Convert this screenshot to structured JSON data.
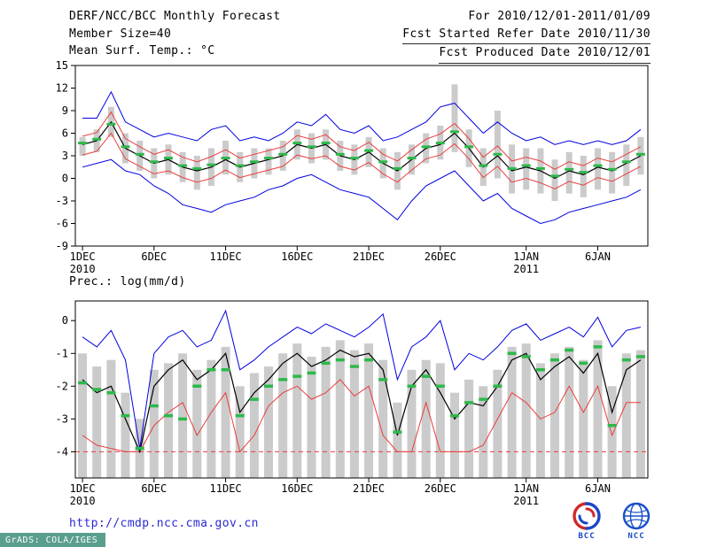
{
  "header": {
    "left": [
      "DERF/NCC/BCC Monthly Forecast",
      "Member Size=40",
      "Mean Surf. Temp.: °C"
    ],
    "right": [
      "For 2010/12/01-2011/01/09",
      "Fcst Started Refer Date 2010/11/30",
      "Fcst Produced Date 2010/12/01"
    ]
  },
  "footer": {
    "url": "http://cmdp.ncc.cma.gov.cn",
    "stamp": "GrADS: COLA/IGES",
    "logos": [
      {
        "label": "BCC"
      },
      {
        "label": "NCC"
      }
    ]
  },
  "colors": {
    "line_blue": "#0000e0",
    "line_red": "#eb3d3d",
    "line_black": "#000000",
    "dash_green": "#2db84a",
    "bar_gray": "#cbcbcb",
    "url_blue": "#2a2ad4",
    "stamp_bg": "#5a9e8e",
    "text": "#000000"
  },
  "chart_data": [
    {
      "type": "line",
      "name": "surface-temperature",
      "title": "Mean Surf. Temp.: °C",
      "xlabel": "",
      "ylabel": "°C",
      "n_days": 40,
      "frame_ylim": [
        -9,
        15
      ],
      "yticks": [
        15,
        12,
        9,
        6,
        3,
        0,
        -3,
        -6,
        -9
      ],
      "xticks": [
        {
          "i": 0,
          "label": "1DEC",
          "year": "2010"
        },
        {
          "i": 5,
          "label": "6DEC"
        },
        {
          "i": 10,
          "label": "11DEC"
        },
        {
          "i": 15,
          "label": "16DEC"
        },
        {
          "i": 20,
          "label": "21DEC"
        },
        {
          "i": 25,
          "label": "26DEC"
        },
        {
          "i": 31,
          "label": "1JAN",
          "year": "2011"
        },
        {
          "i": 36,
          "label": "6JAN"
        }
      ],
      "bars": {
        "name": "ensemble-spread",
        "color": "#cbcbcb",
        "top": [
          5.5,
          6.5,
          9.5,
          6,
          5,
          4,
          4.5,
          3.5,
          3,
          4,
          5,
          3.5,
          4,
          4,
          5,
          6.5,
          6,
          6.5,
          5,
          4.5,
          5.5,
          4,
          3.5,
          4.5,
          6,
          7,
          12.5,
          6.5,
          4,
          9,
          4.5,
          4,
          4,
          2.5,
          3.5,
          3,
          4,
          3.5,
          4.5,
          5.5
        ],
        "bottom": [
          3,
          3.5,
          5.5,
          2,
          1,
          0,
          0.5,
          -0.5,
          -1.5,
          -1,
          0.5,
          -0.5,
          0,
          0.5,
          1,
          2.5,
          2,
          2.5,
          1,
          0.5,
          1.5,
          0,
          -1.5,
          0.5,
          2,
          2.5,
          3.5,
          1.5,
          -1,
          0,
          -2,
          -1.5,
          -2,
          -3,
          -2,
          -2.5,
          -1.5,
          -2,
          -1,
          0.5
        ]
      },
      "series": [
        {
          "name": "ensemble-max",
          "style": "line",
          "color": "#0000e0",
          "width": 1,
          "values": [
            8,
            8,
            11.5,
            7.5,
            6.5,
            5.5,
            6,
            5.5,
            5,
            6.5,
            7,
            5,
            5.5,
            5,
            6,
            7.5,
            7,
            8.5,
            6.5,
            6,
            7,
            5,
            5.5,
            6.5,
            7.5,
            9.5,
            10,
            8,
            6,
            7.5,
            6,
            5,
            5.5,
            4.5,
            5,
            4.5,
            5,
            4.5,
            5,
            6.5
          ]
        },
        {
          "name": "ensemble-min",
          "style": "line",
          "color": "#0000e0",
          "width": 1,
          "values": [
            1.5,
            2,
            2.5,
            1,
            0.5,
            -1,
            -2,
            -3.5,
            -4,
            -4.5,
            -3.5,
            -3,
            -2.5,
            -1.5,
            -1,
            0,
            0.5,
            -0.5,
            -1.5,
            -2,
            -2.5,
            -4,
            -5.5,
            -3,
            -1,
            0,
            1,
            -1,
            -3,
            -2,
            -4,
            -5,
            -6,
            -5.5,
            -4.5,
            -4,
            -3.5,
            -3,
            -2.5,
            -1.5
          ]
        },
        {
          "name": "upper-quartile",
          "style": "line",
          "color": "#eb3d3d",
          "width": 1,
          "values": [
            5.6,
            6.1,
            8.8,
            5.3,
            4.2,
            3.2,
            3.8,
            2.8,
            2.2,
            2.9,
            3.8,
            2.7,
            3.2,
            3.7,
            4.2,
            5.7,
            5.2,
            5.8,
            4.2,
            3.7,
            4.8,
            3.2,
            2.3,
            3.8,
            5.2,
            5.9,
            7.3,
            5.3,
            2.8,
            4.3,
            2.3,
            2.8,
            2.3,
            1.2,
            2.2,
            1.7,
            2.7,
            2.2,
            3.2,
            4.2
          ]
        },
        {
          "name": "lower-quartile",
          "style": "line",
          "color": "#eb3d3d",
          "width": 1,
          "values": [
            3.1,
            3.6,
            6,
            2.6,
            1.6,
            0.6,
            1,
            0.1,
            -0.5,
            0,
            1.1,
            0.1,
            0.6,
            1.1,
            1.6,
            3.1,
            2.6,
            3,
            1.6,
            1.1,
            2.1,
            0.6,
            -0.5,
            1.1,
            2.6,
            3.1,
            4.6,
            2.6,
            0.1,
            1.6,
            -0.5,
            0,
            -0.6,
            -1.4,
            -0.4,
            -0.9,
            0.1,
            -0.4,
            0.6,
            1.6
          ]
        },
        {
          "name": "ensemble-mean",
          "style": "line",
          "color": "#000000",
          "width": 1.2,
          "values": [
            4.5,
            5,
            7.5,
            4,
            3,
            2,
            2.5,
            1.5,
            1,
            1.5,
            2.5,
            1.5,
            2,
            2.5,
            3,
            4.5,
            4,
            4.5,
            3,
            2.5,
            3.5,
            2,
            1,
            2.5,
            4,
            4.5,
            6,
            4,
            1.5,
            3,
            1,
            1.5,
            1,
            0,
            1,
            0.5,
            1.5,
            1,
            2,
            3
          ]
        },
        {
          "name": "ensemble-median",
          "style": "dash",
          "color": "#2db84a",
          "values": [
            4.7,
            5.2,
            7.2,
            4.2,
            3.2,
            2.2,
            2.7,
            1.7,
            1.3,
            1.8,
            2.7,
            1.7,
            2.2,
            2.7,
            3.2,
            4.7,
            4.2,
            4.7,
            3.2,
            2.7,
            3.7,
            2.2,
            1.3,
            2.7,
            4.2,
            4.7,
            6.2,
            4.2,
            1.7,
            3.2,
            1.3,
            1.7,
            1.3,
            0.3,
            1.2,
            0.8,
            1.7,
            1.2,
            2.2,
            3.2
          ]
        }
      ]
    },
    {
      "type": "line",
      "name": "precipitation",
      "title": "Prec.: log(mm/d)",
      "xlabel": "",
      "ylabel": "log(mm/d)",
      "n_days": 40,
      "frame_ylim": [
        -4.8,
        0.6
      ],
      "yticks": [
        0,
        -1,
        -2,
        -3,
        -4
      ],
      "refline": {
        "value": -4,
        "color": "#eb3d3d",
        "style": "dashed"
      },
      "xticks": [
        {
          "i": 0,
          "label": "1DEC",
          "year": "2010"
        },
        {
          "i": 5,
          "label": "6DEC"
        },
        {
          "i": 10,
          "label": "11DEC"
        },
        {
          "i": 15,
          "label": "16DEC"
        },
        {
          "i": 20,
          "label": "21DEC"
        },
        {
          "i": 25,
          "label": "26DEC"
        },
        {
          "i": 31,
          "label": "1JAN",
          "year": "2011"
        },
        {
          "i": 36,
          "label": "6JAN"
        }
      ],
      "bars": {
        "name": "ensemble-spread",
        "color": "#cbcbcb",
        "top": [
          -1,
          -1.4,
          -1.2,
          -2.2,
          -3,
          -1.5,
          -1.3,
          -1,
          -1.5,
          -1.2,
          -0.8,
          -2,
          -1.6,
          -1.4,
          -1,
          -0.7,
          -1.1,
          -0.8,
          -0.6,
          -0.9,
          -0.7,
          -1.2,
          -2.5,
          -1.5,
          -1.2,
          -1.3,
          -2.2,
          -1.8,
          -2,
          -1.5,
          -0.8,
          -0.7,
          -1.3,
          -1,
          -0.8,
          -1.2,
          -0.6,
          -2,
          -1,
          -0.9
        ],
        "bottom": "frame"
      },
      "series": [
        {
          "name": "ensemble-max",
          "style": "line",
          "color": "#0000e0",
          "width": 1,
          "values": [
            -0.5,
            -0.8,
            -0.3,
            -1.2,
            -3.9,
            -1,
            -0.5,
            -0.3,
            -0.8,
            -0.6,
            0.3,
            -1.5,
            -1.2,
            -0.8,
            -0.5,
            -0.2,
            -0.4,
            -0.1,
            -0.3,
            -0.5,
            -0.2,
            0.2,
            -1.8,
            -0.8,
            -0.5,
            0,
            -1.5,
            -1,
            -1.2,
            -0.8,
            -0.3,
            -0.1,
            -0.6,
            -0.4,
            -0.2,
            -0.5,
            0.1,
            -0.8,
            -0.3,
            -0.2
          ]
        },
        {
          "name": "ensemble-min",
          "style": "line",
          "color": "#eb3d3d",
          "width": 1,
          "values": [
            -3.5,
            -3.8,
            -3.9,
            -4,
            -4,
            -3.2,
            -2.8,
            -2.5,
            -3.5,
            -2.8,
            -2.2,
            -4,
            -3.5,
            -2.6,
            -2.2,
            -2,
            -2.4,
            -2.2,
            -1.8,
            -2.3,
            -2,
            -3.5,
            -4,
            -4,
            -2.5,
            -4,
            -4,
            -4,
            -3.8,
            -3,
            -2.2,
            -2.5,
            -3,
            -2.8,
            -2,
            -2.8,
            -2,
            -3.5,
            -2.5,
            -2.5
          ]
        },
        {
          "name": "ensemble-mean",
          "style": "line",
          "color": "#000000",
          "width": 1.2,
          "values": [
            -1.8,
            -2.2,
            -2,
            -3,
            -4,
            -2,
            -1.5,
            -1.2,
            -1.8,
            -1.5,
            -1,
            -2.8,
            -2.2,
            -1.8,
            -1.3,
            -1,
            -1.4,
            -1.2,
            -0.9,
            -1.1,
            -1,
            -1.5,
            -3.5,
            -2,
            -1.5,
            -2.2,
            -3,
            -2.5,
            -2.6,
            -2,
            -1.2,
            -1,
            -1.8,
            -1.4,
            -1.1,
            -1.6,
            -1,
            -2.8,
            -1.5,
            -1.2
          ]
        },
        {
          "name": "ensemble-median",
          "style": "dash",
          "color": "#2db84a",
          "values": [
            -1.9,
            -2.1,
            -2.2,
            -2.9,
            -3.9,
            -2.6,
            -2.9,
            -3,
            -2,
            -1.5,
            -1.5,
            -2.9,
            -2.4,
            -2,
            -1.8,
            -1.7,
            -1.6,
            -1.3,
            -1.2,
            -1.4,
            -1.2,
            -1.8,
            -3.4,
            -2,
            -1.7,
            -2,
            -2.9,
            -2.5,
            -2.4,
            -2,
            -1,
            -1.1,
            -1.5,
            -1.2,
            -0.9,
            -1.3,
            -0.8,
            -3.2,
            -1.2,
            -1.1
          ]
        }
      ]
    }
  ]
}
